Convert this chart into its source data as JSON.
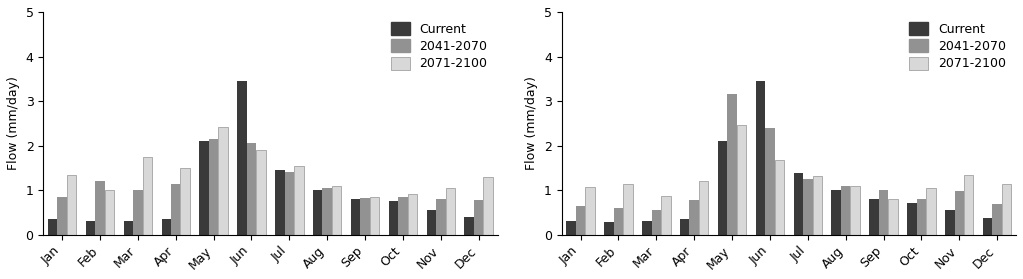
{
  "months": [
    "Jan",
    "Feb",
    "Mar",
    "Apr",
    "May",
    "Jun",
    "Jul",
    "Aug",
    "Sep",
    "Oct",
    "Nov",
    "Dec"
  ],
  "chart1": {
    "current": [
      0.35,
      0.3,
      0.3,
      0.35,
      2.1,
      3.45,
      1.45,
      1.0,
      0.8,
      0.75,
      0.55,
      0.4
    ],
    "mid": [
      0.85,
      1.2,
      1.0,
      1.15,
      2.15,
      2.05,
      1.4,
      1.05,
      0.82,
      0.85,
      0.8,
      0.78
    ],
    "late": [
      1.35,
      1.0,
      1.75,
      1.5,
      2.43,
      1.9,
      1.55,
      1.1,
      0.85,
      0.92,
      1.05,
      1.3
    ]
  },
  "chart2": {
    "current": [
      0.3,
      0.28,
      0.3,
      0.35,
      2.1,
      3.45,
      1.38,
      1.0,
      0.8,
      0.72,
      0.55,
      0.38
    ],
    "mid": [
      0.65,
      0.6,
      0.55,
      0.78,
      3.15,
      2.4,
      1.25,
      1.1,
      1.0,
      0.8,
      0.98,
      0.7
    ],
    "late": [
      1.08,
      1.15,
      0.88,
      1.2,
      2.47,
      1.68,
      1.32,
      1.1,
      0.8,
      1.05,
      1.35,
      1.15
    ]
  },
  "colors": {
    "current": "#3a3a3a",
    "mid": "#929292",
    "late": "#d8d8d8"
  },
  "ylabel": "Flow (mm/day)",
  "ylim": [
    0,
    5
  ],
  "yticks": [
    0,
    1,
    2,
    3,
    4,
    5
  ],
  "legend_labels": [
    "Current",
    "2041-2070",
    "2071-2100"
  ],
  "bar_width": 0.25
}
